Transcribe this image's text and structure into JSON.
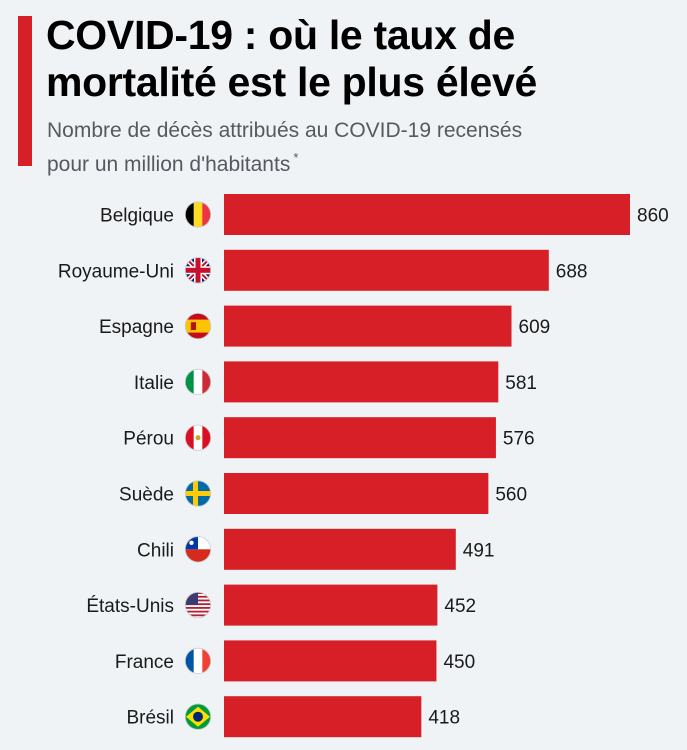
{
  "header": {
    "title": "COVID-19 : où le taux de mortalité est le plus élevé",
    "subtitle_line1": "Nombre de décès attribués au COVID-19 recensés",
    "subtitle_line2": "pour un million d'habitants",
    "footnote_mark": "*"
  },
  "colors": {
    "accent": "#d61f26",
    "bar": "#d61f26",
    "background": "#f0f3f6"
  },
  "chart_data": {
    "type": "bar",
    "orientation": "horizontal",
    "title": "COVID-19 : où le taux de mortalité est le plus élevé",
    "subtitle": "Nombre de décès attribués au COVID-19 recensés pour un million d'habitants *",
    "categories": [
      "Belgique",
      "Royaume-Uni",
      "Espagne",
      "Italie",
      "Pérou",
      "Suède",
      "Chili",
      "États-Unis",
      "France",
      "Brésil"
    ],
    "values": [
      860,
      688,
      609,
      581,
      576,
      560,
      491,
      452,
      450,
      418
    ],
    "flags": [
      "belgium-flag-icon",
      "uk-flag-icon",
      "spain-flag-icon",
      "italy-flag-icon",
      "peru-flag-icon",
      "sweden-flag-icon",
      "chile-flag-icon",
      "usa-flag-icon",
      "france-flag-icon",
      "brazil-flag-icon"
    ],
    "xlim": [
      0,
      860
    ],
    "grid": false,
    "legend": "none",
    "data_labels": true
  }
}
